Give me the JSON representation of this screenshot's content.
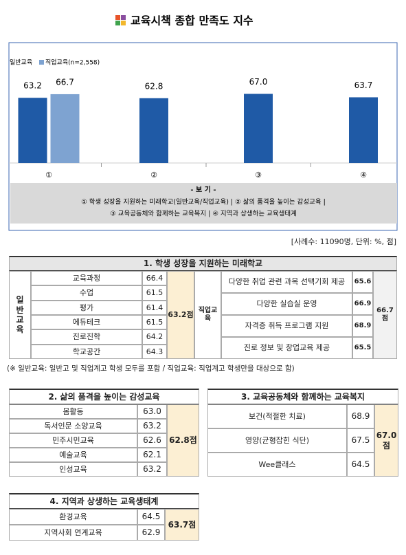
{
  "header": {
    "title": "교육시책 종합 만족도 지수"
  },
  "chart_data": {
    "type": "bar",
    "categories": [
      "①",
      "②",
      "③",
      "④"
    ],
    "series": [
      {
        "name": "일반교육",
        "color": "#1f5aa6",
        "values": [
          63.2,
          62.8,
          67.0,
          63.7
        ],
        "value_labels": [
          "63.2",
          "62.8",
          "67.0",
          "63.7"
        ]
      },
      {
        "name": "직업교육(n=2,558)",
        "color": "#7ea3d1",
        "values": [
          66.7,
          null,
          null,
          null
        ],
        "value_labels": [
          "66.7",
          null,
          null,
          null
        ]
      }
    ],
    "legend": {
      "title": "- 보 기 -",
      "lines": [
        "① 학생 성장을 지원하는 미래학교(일반교육/직업교육) | ② 삶의 품격을 높이는 감성교육 |",
        "③ 교육공동체와 함께하는 교육복지 | ④ 지역과 상생하는 교육생태계"
      ]
    }
  },
  "note": "[사례수: 11090명, 단위: %, 점]",
  "table1": {
    "title": "1. 학생 성장을 지원하는 미래학교",
    "groups": [
      {
        "label": "일반교육",
        "rows": [
          [
            "교육과정",
            "66.4"
          ],
          [
            "수업",
            "61.5"
          ],
          [
            "평가",
            "61.4"
          ],
          [
            "에듀테크",
            "61.5"
          ],
          [
            "진로진학",
            "64.2"
          ],
          [
            "학교공간",
            "64.3"
          ]
        ],
        "total": "63.2점"
      },
      {
        "label": "직업교육",
        "rows": [
          [
            "다양한 취업 관련 과목 선택기회 제공",
            "65.6"
          ],
          [
            "다양한 실습실 운영",
            "66.9"
          ],
          [
            "자격증 취득 프로그램 지원",
            "68.9"
          ],
          [
            "진로 정보 및 창업교육 제공",
            "65.5"
          ]
        ],
        "total": "66.7점"
      }
    ]
  },
  "footnote": "(※ 일반교육: 일반고 및 직업계고 학생 모두를 포함 / 직업교육: 직업계고 학생만을 대상으로 함)",
  "table2": {
    "title": "2. 삶의 품격을 높이는 감성교육",
    "rows": [
      [
        "몸활동",
        "63.0"
      ],
      [
        "독서인문 소양교육",
        "63.2"
      ],
      [
        "민주시민교육",
        "62.6"
      ],
      [
        "예술교육",
        "62.1"
      ],
      [
        "인성교육",
        "63.2"
      ]
    ],
    "total": "62.8점"
  },
  "table3": {
    "title": "3. 교육공동체와 함께하는 교육복지",
    "rows": [
      [
        "보건(적절한 치료)",
        "68.9"
      ],
      [
        "영양(균형잡힌 식단)",
        "67.5"
      ],
      [
        "Wee클래스",
        "64.5"
      ]
    ],
    "total": "67.0점"
  },
  "table4": {
    "title": "4. 지역과 상생하는 교육생태계",
    "rows": [
      [
        "환경교육",
        "64.5"
      ],
      [
        "지역사회 연계교육",
        "62.9"
      ]
    ],
    "total": "63.7점"
  }
}
